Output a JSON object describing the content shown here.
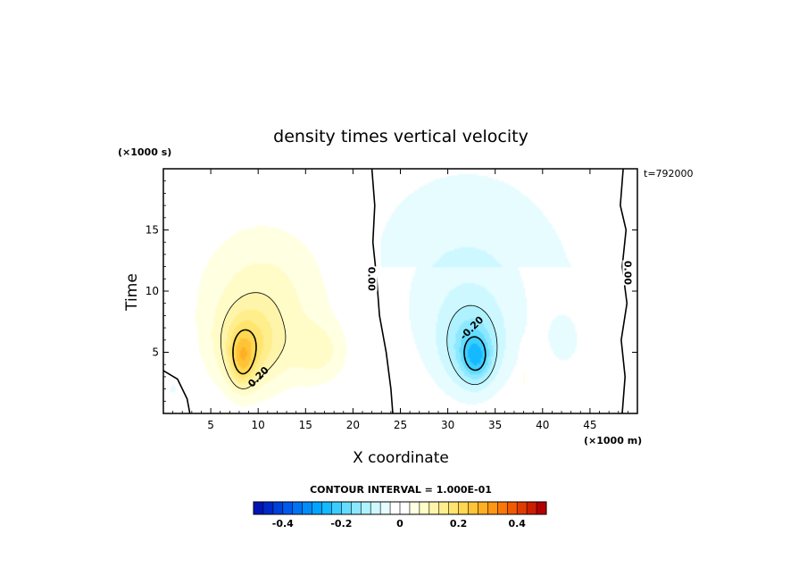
{
  "chart_data": {
    "type": "heatmap",
    "title": "density times vertical velocity",
    "xlabel": "X coordinate",
    "ylabel": "Time",
    "x_unit": "(×1000 m)",
    "y_unit": "(×1000 s)",
    "timestamp": "t=792000",
    "xlim": [
      0,
      50
    ],
    "ylim": [
      0,
      20
    ],
    "x_ticks": [
      5,
      10,
      15,
      20,
      25,
      30,
      35,
      40,
      45
    ],
    "y_ticks": [
      5,
      10,
      15
    ],
    "contour_interval_label": "CONTOUR INTERVAL = 1.000E-01",
    "contour_labels": [
      {
        "text": "0.00",
        "x": 22.0,
        "y": 11.0
      },
      {
        "text": "0.20",
        "x": 10.0,
        "y": 3.0
      },
      {
        "text": "-0.20",
        "x": 32.5,
        "y": 7.0
      },
      {
        "text": "0.00",
        "x": 49.0,
        "y": 11.5
      }
    ],
    "colorbar": {
      "min": -0.5,
      "max": 0.5,
      "tick_values": [
        -0.4,
        -0.2,
        0,
        0.2,
        0.4
      ],
      "tick_labels": [
        "-0.4",
        "-0.2",
        "0",
        "0.2",
        "0.4"
      ]
    },
    "features": [
      {
        "name": "positive-lobe",
        "center": [
          8.5,
          4.5
        ],
        "peak": 0.32
      },
      {
        "name": "negative-lobe",
        "center": [
          33,
          5
        ],
        "peak": -0.3
      }
    ]
  }
}
